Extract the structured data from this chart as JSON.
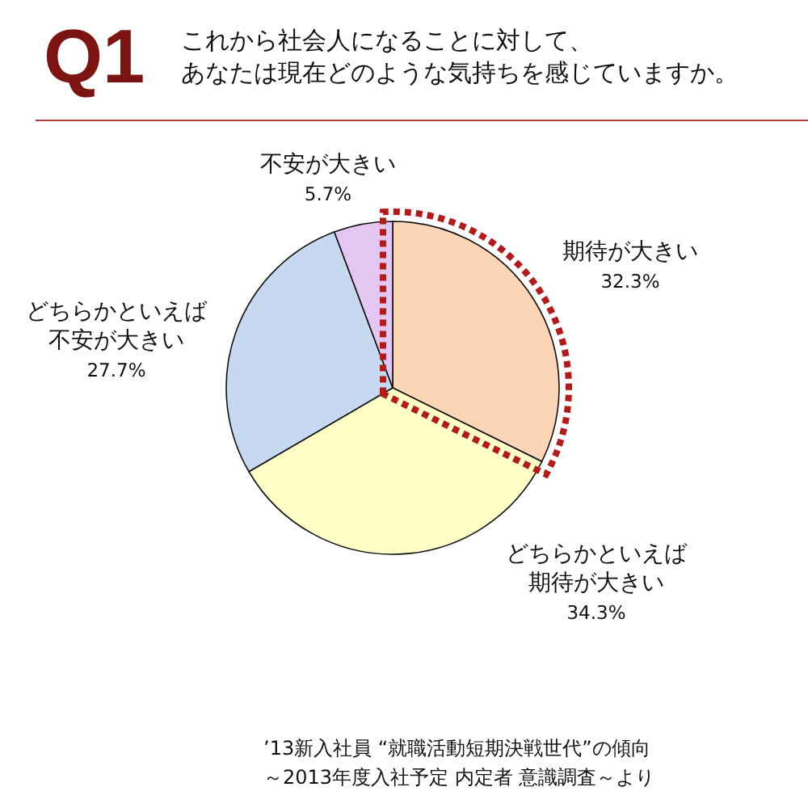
{
  "chart_data": {
    "type": "pie",
    "title": "Q1",
    "subtitle": "これから社会人になることに対して、あなたは現在どのような気持ちを感じていますか。",
    "categories": [
      "期待が大きい",
      "どちらかといえば期待が大きい",
      "どちらかといえば不安が大きい",
      "不安が大きい"
    ],
    "values": [
      32.3,
      34.3,
      27.7,
      5.7
    ],
    "colors": [
      "#fbd5b5",
      "#ffffc8",
      "#c6d9f1",
      "#e4c6f2"
    ],
    "value_labels": [
      "32.3%",
      "34.3%",
      "27.7%",
      "5.7%"
    ],
    "annotations": [
      "’13新入社員 “就職活動短期決戦世代”の傾向～2013年度入社予定 内定者 意識調査～より"
    ]
  }
}
